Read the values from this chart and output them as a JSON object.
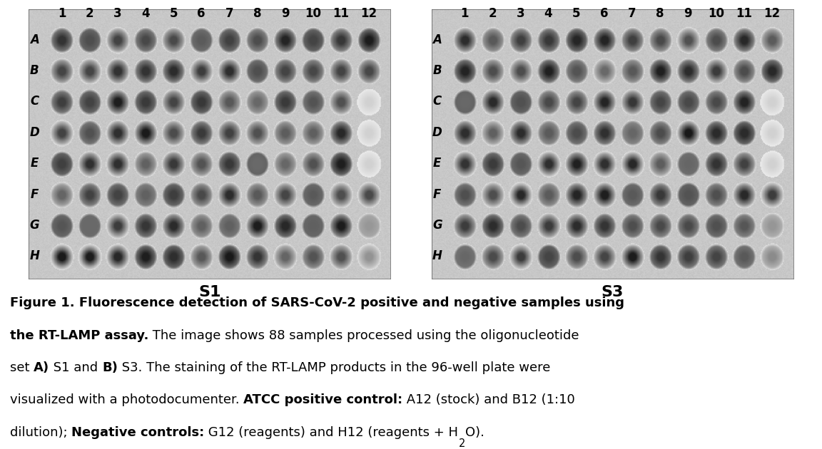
{
  "figure_width": 11.52,
  "figure_height": 6.3,
  "dpi": 100,
  "background_color": "#ffffff",
  "plate_labels_cols": [
    "1",
    "2",
    "3",
    "4",
    "5",
    "6",
    "7",
    "8",
    "9",
    "10",
    "11",
    "12"
  ],
  "plate_labels_rows": [
    "A",
    "B",
    "C",
    "D",
    "E",
    "F",
    "G",
    "H"
  ],
  "plate1_label": "S1",
  "plate2_label": "S3",
  "label_fontsize": 12,
  "plate_label_fontsize": 16,
  "caption_fontsize": 13.0
}
